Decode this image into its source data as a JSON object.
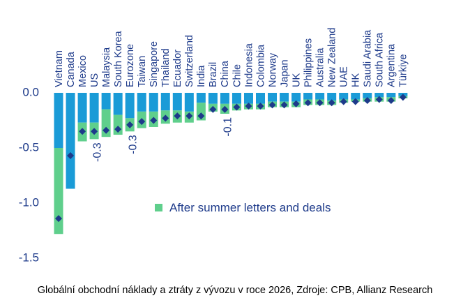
{
  "chart_data": {
    "type": "bar",
    "categories": [
      "Vietnam",
      "Canada",
      "Mexico",
      "US",
      "Malaysia",
      "South Korea",
      "Eurozone",
      "Taiwan",
      "Singapore",
      "Thailand",
      "Ecuador",
      "Switzerland",
      "India",
      "Brazil",
      "China",
      "Chile",
      "Indonesia",
      "Colombia",
      "Norway",
      "Japan",
      "UK",
      "Philippines",
      "Australia",
      "New Zealand",
      "UAE",
      "HK",
      "Saudi Arabia",
      "South Africa",
      "Argentina",
      "Türkiye"
    ],
    "series": [
      {
        "color": "#1a9bd7",
        "values": [
          -0.5,
          -0.87,
          -0.27,
          -0.27,
          -0.15,
          -0.2,
          -0.23,
          -0.17,
          -0.17,
          -0.16,
          -0.16,
          -0.17,
          -0.09,
          -0.1,
          -0.1,
          -0.1,
          -0.1,
          -0.1,
          -0.08,
          -0.08,
          -0.08,
          -0.06,
          -0.06,
          -0.07,
          -0.06,
          -0.06,
          -0.05,
          -0.04,
          -0.04,
          -0.03
        ]
      },
      {
        "name": "After summer letters and deals",
        "color": "#5fcf8c",
        "values": [
          -0.78,
          0,
          -0.17,
          -0.15,
          -0.25,
          -0.18,
          -0.12,
          -0.15,
          -0.14,
          -0.12,
          -0.11,
          -0.1,
          -0.16,
          -0.07,
          -0.09,
          -0.06,
          -0.05,
          -0.05,
          -0.05,
          -0.05,
          -0.05,
          -0.05,
          -0.05,
          -0.04,
          -0.03,
          -0.02,
          -0.03,
          -0.04,
          -0.04,
          -0.02
        ]
      },
      {
        "type": "scatter",
        "color": "#1d3a8a",
        "values": [
          -1.14,
          -0.57,
          -0.35,
          -0.35,
          -0.34,
          -0.33,
          -0.29,
          -0.26,
          -0.25,
          -0.23,
          -0.21,
          -0.21,
          -0.21,
          -0.15,
          -0.15,
          -0.13,
          -0.12,
          -0.12,
          -0.11,
          -0.11,
          -0.1,
          -0.09,
          -0.09,
          -0.09,
          -0.08,
          -0.08,
          -0.07,
          -0.06,
          -0.07,
          -0.04
        ]
      }
    ],
    "annotations": [
      {
        "text": "-0.3",
        "category": "US"
      },
      {
        "text": "-0.3",
        "category": "Eurozone"
      },
      {
        "text": "-0.1",
        "category": "China"
      }
    ],
    "ylim": [
      -1.5,
      0
    ],
    "yticks": [
      {
        "value": 0,
        "label": "0.0"
      },
      -0.5,
      {
        "value": -1,
        "label": "-1.0"
      },
      {
        "value": -1.5,
        "label": "-1.5"
      }
    ],
    "caption": "Globální obchodní náklady a ztráty z vývozu v roce 2026, Zdroje: CPB, Allianz Research"
  }
}
